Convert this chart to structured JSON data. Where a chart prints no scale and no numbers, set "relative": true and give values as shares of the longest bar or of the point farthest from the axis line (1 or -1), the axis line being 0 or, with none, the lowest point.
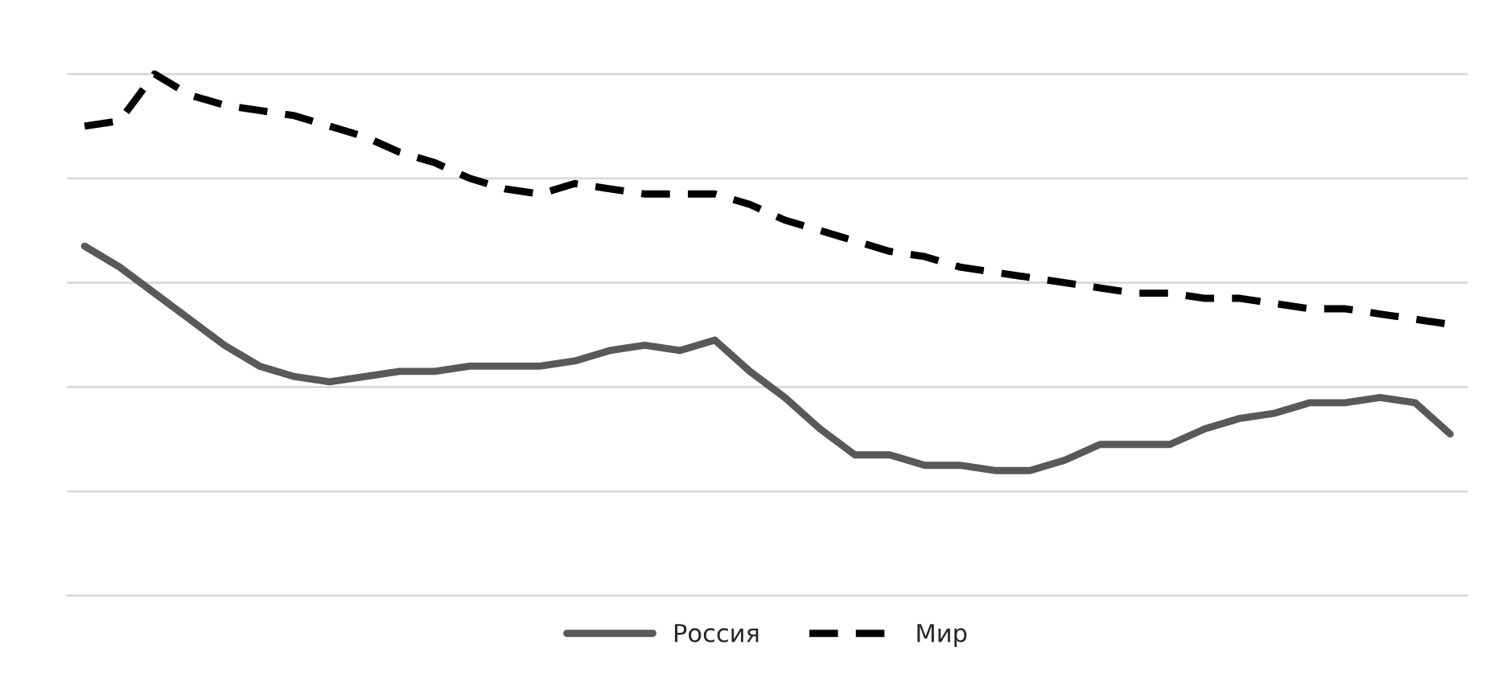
{
  "chart_data": {
    "type": "line",
    "relative": true,
    "grid": "y",
    "legend": "bottom",
    "categories": [
      null,
      null,
      null,
      null,
      null,
      null,
      null,
      null,
      null,
      null,
      null,
      null,
      null,
      null,
      null,
      null,
      null,
      null,
      null,
      null,
      null,
      null,
      null,
      null,
      null,
      null,
      null,
      null,
      null,
      null,
      null,
      null,
      null,
      null,
      null,
      null,
      null,
      null,
      null,
      null
    ],
    "series": [
      {
        "name": "Россия",
        "color": "#595959",
        "line_style": "solid",
        "values": [
          0.67,
          0.63,
          0.58,
          0.53,
          0.48,
          0.44,
          0.42,
          0.41,
          0.42,
          0.43,
          0.43,
          0.44,
          0.44,
          0.44,
          0.45,
          0.47,
          0.48,
          0.47,
          0.49,
          0.43,
          0.38,
          0.32,
          0.27,
          0.27,
          0.25,
          0.25,
          0.24,
          0.24,
          0.26,
          0.29,
          0.29,
          0.29,
          0.32,
          0.34,
          0.35,
          0.37,
          0.37,
          0.38,
          0.37,
          0.31
        ]
      },
      {
        "name": "Мир",
        "color": "#000000",
        "line_style": "dashed",
        "values": [
          0.9,
          0.91,
          1.0,
          0.96,
          0.94,
          0.93,
          0.92,
          0.9,
          0.88,
          0.85,
          0.83,
          0.8,
          0.78,
          0.77,
          0.79,
          0.78,
          0.77,
          0.77,
          0.77,
          0.75,
          0.72,
          0.7,
          0.68,
          0.66,
          0.65,
          0.63,
          0.62,
          0.61,
          0.6,
          0.59,
          0.58,
          0.58,
          0.57,
          0.57,
          0.56,
          0.55,
          0.55,
          0.54,
          0.53,
          0.52
        ]
      }
    ]
  }
}
